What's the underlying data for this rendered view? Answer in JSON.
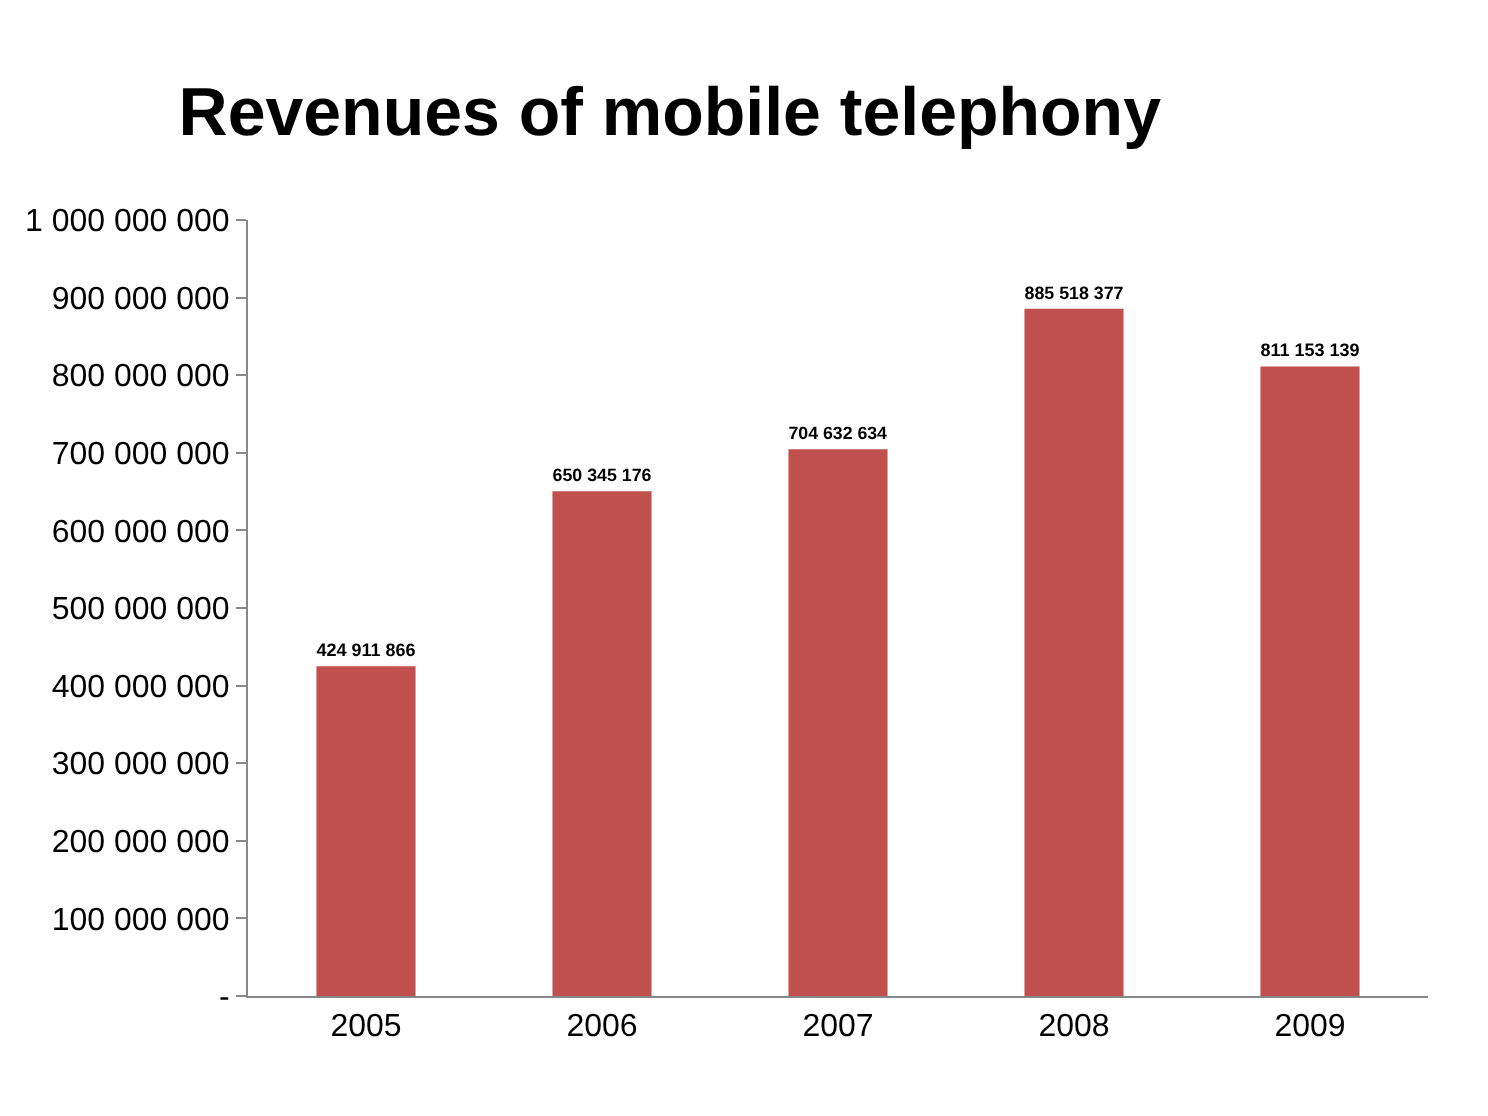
{
  "chart_data": {
    "type": "bar",
    "title": "Revenues of mobile telephony",
    "categories": [
      "2005",
      "2006",
      "2007",
      "2008",
      "2009"
    ],
    "values": [
      424911866,
      650345176,
      704632634,
      885518377,
      811153139
    ],
    "color": "#c0504d",
    "ylim": [
      0,
      1000000000
    ],
    "yticks": [
      {
        "value": 0,
        "label": "-"
      },
      {
        "value": 100000000,
        "label": "100 000 000"
      },
      {
        "value": 200000000,
        "label": "200 000 000"
      },
      {
        "value": 300000000,
        "label": "300 000 000"
      },
      {
        "value": 400000000,
        "label": "400 000 000"
      },
      {
        "value": 500000000,
        "label": "500 000 000"
      },
      {
        "value": 600000000,
        "label": "600 000 000"
      },
      {
        "value": 700000000,
        "label": "700 000 000"
      },
      {
        "value": 800000000,
        "label": "800 000 000"
      },
      {
        "value": 900000000,
        "label": "900 000 000"
      },
      {
        "value": 1000000000,
        "label": "1 000 000 000"
      }
    ],
    "data_labels": true
  }
}
